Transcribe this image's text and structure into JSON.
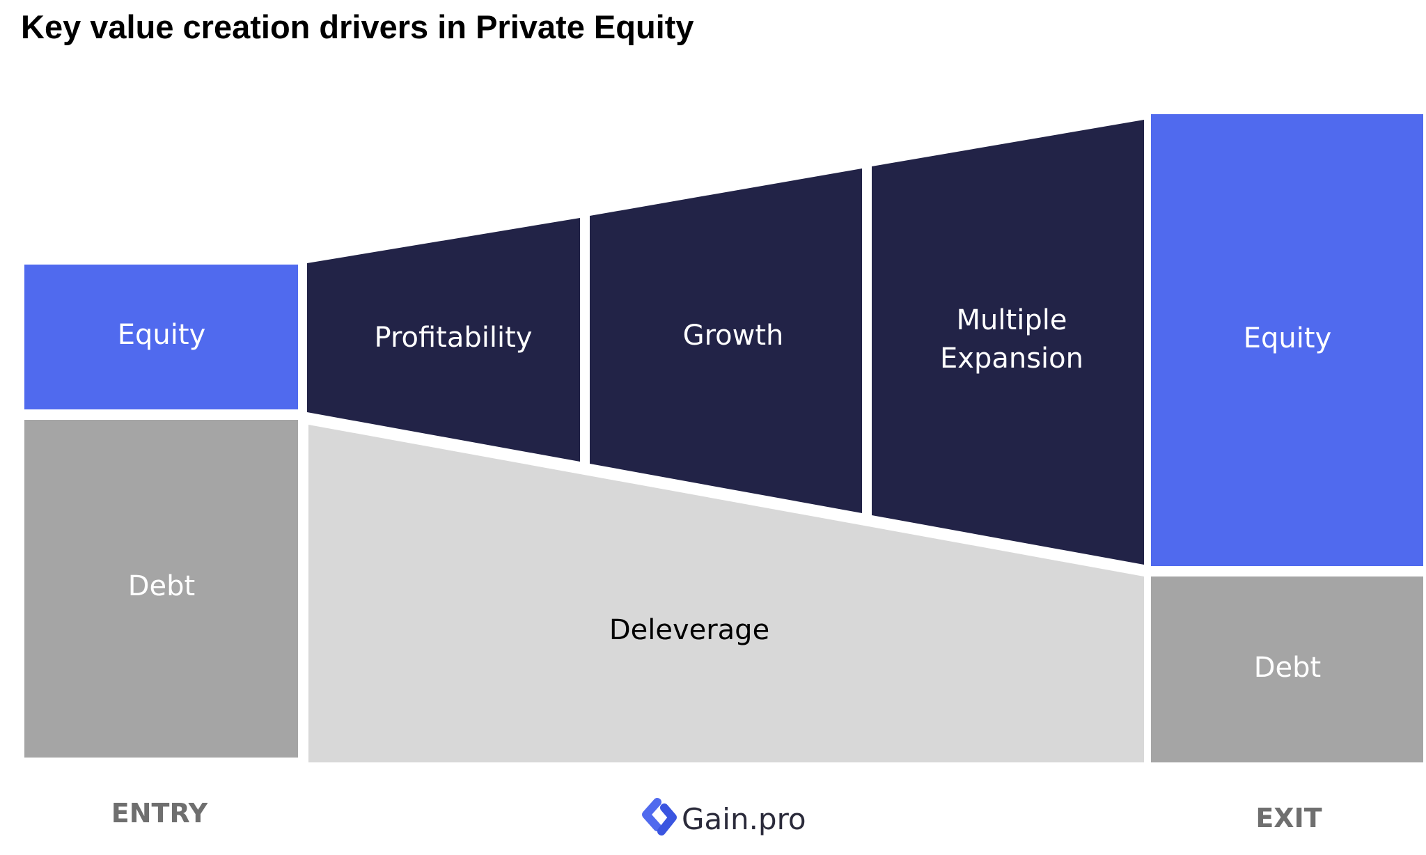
{
  "title": "Key value creation drivers in Private Equity",
  "entry": {
    "equity_label": "Equity",
    "debt_label": "Debt",
    "phase_label": "ENTRY"
  },
  "drivers": {
    "profitability_label": "Profitability",
    "growth_label": "Growth",
    "multiple_expansion_line1": "Multiple",
    "multiple_expansion_line2": "Expansion",
    "deleverage_label": "Deleverage"
  },
  "exit": {
    "equity_label": "Equity",
    "debt_label": "Debt",
    "phase_label": "EXIT"
  },
  "brand": {
    "name": "Gain.pro",
    "logo_icon": "gain-pro-logo-icon"
  },
  "colors": {
    "equity_blue": "#506aee",
    "debt_gray": "#a5a5a5",
    "driver_navy": "#222347",
    "deleverage_gray": "#d8d8d8",
    "phase_gray": "#6f6f6f"
  }
}
